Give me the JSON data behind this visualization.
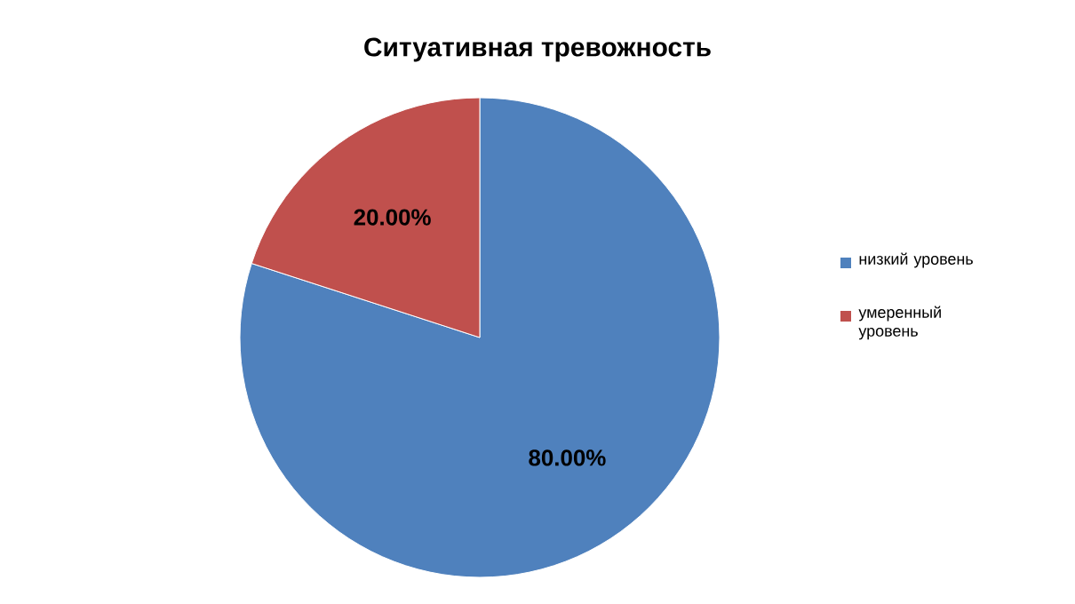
{
  "chart_data": {
    "type": "pie",
    "title": "Ситуативная тревожность",
    "categories": [
      "низкий уровень",
      "умеренный уровень"
    ],
    "values": [
      80,
      20
    ],
    "colors": [
      "#4f81bd",
      "#c0504d"
    ],
    "value_labels": [
      "80.00%",
      "20.00%"
    ],
    "legend": "right"
  }
}
